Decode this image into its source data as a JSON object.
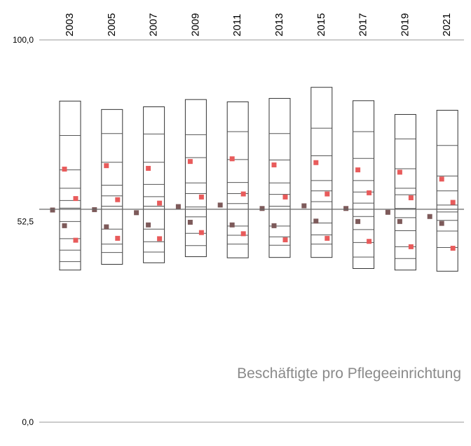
{
  "chart_data": {
    "type": "scatter",
    "title": "Beschäftigte pro Pflegeeinrichtung",
    "y_tick_labels": [
      "100,0",
      "52,5",
      "0,0"
    ],
    "ylim": [
      0,
      100
    ],
    "reference_line": 55.7,
    "grid": false,
    "colors": {
      "box": "#333333",
      "dark_marker": "#7d5a5a",
      "red_marker": "#e85b5b",
      "title": "#8a8a8a"
    },
    "categories": [
      "2003",
      "2005",
      "2007",
      "2009",
      "2011",
      "2013",
      "2015",
      "2017",
      "2019",
      "2021"
    ],
    "columns": [
      {
        "year": "2003",
        "box_range": [
          39.8,
          84.0
        ],
        "ticks": [
          75.0,
          66.0,
          61.2,
          58.0,
          56.0,
          52.5,
          48.0,
          45.0,
          42.0
        ],
        "markers": [
          {
            "y": 55.5,
            "kind": "dark",
            "pos": 0
          },
          {
            "y": 66.2,
            "kind": "red",
            "pos": 1
          },
          {
            "y": 58.5,
            "kind": "red",
            "pos": 2
          },
          {
            "y": 51.4,
            "kind": "dark",
            "pos": 1
          },
          {
            "y": 47.6,
            "kind": "red",
            "pos": 2
          }
        ]
      },
      {
        "year": "2005",
        "box_range": [
          41.3,
          81.8
        ],
        "ticks": [
          75.5,
          68.0,
          62.0,
          59.2,
          56.5,
          50.5,
          46.6,
          44.4
        ],
        "markers": [
          {
            "y": 55.6,
            "kind": "dark",
            "pos": 0
          },
          {
            "y": 67.1,
            "kind": "red",
            "pos": 1
          },
          {
            "y": 58.2,
            "kind": "red",
            "pos": 2
          },
          {
            "y": 51.1,
            "kind": "dark",
            "pos": 1
          },
          {
            "y": 48.1,
            "kind": "red",
            "pos": 2
          }
        ]
      },
      {
        "year": "2007",
        "box_range": [
          41.7,
          82.5
        ],
        "ticks": [
          75.4,
          68.0,
          62.2,
          59.0,
          56.5,
          50.5,
          47.2,
          44.5
        ],
        "markers": [
          {
            "y": 54.8,
            "kind": "dark",
            "pos": 0
          },
          {
            "y": 66.4,
            "kind": "red",
            "pos": 1
          },
          {
            "y": 57.3,
            "kind": "red",
            "pos": 2
          },
          {
            "y": 51.6,
            "kind": "dark",
            "pos": 1
          },
          {
            "y": 48.0,
            "kind": "red",
            "pos": 2
          }
        ]
      },
      {
        "year": "2009",
        "box_range": [
          43.3,
          84.4
        ],
        "ticks": [
          75.2,
          69.2,
          62.6,
          59.8,
          56.3,
          53.7,
          49.4,
          46.2
        ],
        "markers": [
          {
            "y": 56.4,
            "kind": "dark",
            "pos": 0
          },
          {
            "y": 68.2,
            "kind": "red",
            "pos": 1
          },
          {
            "y": 58.9,
            "kind": "red",
            "pos": 2
          },
          {
            "y": 52.3,
            "kind": "dark",
            "pos": 1
          },
          {
            "y": 49.6,
            "kind": "red",
            "pos": 2
          }
        ]
      },
      {
        "year": "2011",
        "box_range": [
          43.0,
          83.8
        ],
        "ticks": [
          76.0,
          68.7,
          62.7,
          59.8,
          57.2,
          51.3,
          48.9,
          46.6
        ],
        "markers": [
          {
            "y": 56.8,
            "kind": "dark",
            "pos": 0
          },
          {
            "y": 68.9,
            "kind": "red",
            "pos": 1
          },
          {
            "y": 59.7,
            "kind": "red",
            "pos": 2
          },
          {
            "y": 51.6,
            "kind": "dark",
            "pos": 1
          },
          {
            "y": 49.3,
            "kind": "red",
            "pos": 2
          }
        ]
      },
      {
        "year": "2013",
        "box_range": [
          43.1,
          84.7
        ],
        "ticks": [
          75.5,
          68.6,
          62.6,
          59.6,
          56.5,
          51.3,
          48.5,
          46.3
        ],
        "markers": [
          {
            "y": 55.9,
            "kind": "dark",
            "pos": 0
          },
          {
            "y": 67.3,
            "kind": "red",
            "pos": 1
          },
          {
            "y": 58.9,
            "kind": "red",
            "pos": 2
          },
          {
            "y": 51.4,
            "kind": "dark",
            "pos": 1
          },
          {
            "y": 47.7,
            "kind": "red",
            "pos": 2
          }
        ]
      },
      {
        "year": "2015",
        "box_range": [
          43.1,
          87.6
        ],
        "ticks": [
          76.9,
          69.7,
          63.2,
          60.5,
          57.7,
          52.1,
          49.0,
          46.6
        ],
        "markers": [
          {
            "y": 56.6,
            "kind": "dark",
            "pos": 0
          },
          {
            "y": 67.9,
            "kind": "red",
            "pos": 1
          },
          {
            "y": 59.7,
            "kind": "red",
            "pos": 2
          },
          {
            "y": 52.6,
            "kind": "dark",
            "pos": 1
          },
          {
            "y": 48.1,
            "kind": "red",
            "pos": 2
          }
        ]
      },
      {
        "year": "2017",
        "box_range": [
          40.2,
          84.1
        ],
        "ticks": [
          76.0,
          69.0,
          63.2,
          60.2,
          57.3,
          53.8,
          50.4,
          47.0,
          43.2
        ],
        "markers": [
          {
            "y": 55.9,
            "kind": "dark",
            "pos": 0
          },
          {
            "y": 66.0,
            "kind": "red",
            "pos": 1
          },
          {
            "y": 60.0,
            "kind": "red",
            "pos": 2
          },
          {
            "y": 52.5,
            "kind": "dark",
            "pos": 1
          },
          {
            "y": 47.3,
            "kind": "red",
            "pos": 2
          }
        ]
      },
      {
        "year": "2019",
        "box_range": [
          39.8,
          80.5
        ],
        "ticks": [
          74.1,
          66.3,
          61.2,
          59.5,
          55.9,
          53.5,
          50.1,
          45.9,
          42.8
        ],
        "markers": [
          {
            "y": 54.9,
            "kind": "dark",
            "pos": 0
          },
          {
            "y": 65.4,
            "kind": "red",
            "pos": 1
          },
          {
            "y": 58.7,
            "kind": "red",
            "pos": 2
          },
          {
            "y": 52.5,
            "kind": "dark",
            "pos": 1
          },
          {
            "y": 45.9,
            "kind": "red",
            "pos": 2
          }
        ]
      },
      {
        "year": "2021",
        "box_range": [
          39.5,
          81.6
        ],
        "ticks": [
          72.4,
          64.4,
          60.5,
          56.8,
          55.0,
          52.8,
          50.0,
          45.7
        ],
        "markers": [
          {
            "y": 53.8,
            "kind": "dark",
            "pos": 0
          },
          {
            "y": 63.6,
            "kind": "red",
            "pos": 1
          },
          {
            "y": 57.5,
            "kind": "red",
            "pos": 2
          },
          {
            "y": 52.0,
            "kind": "dark",
            "pos": 1
          },
          {
            "y": 45.5,
            "kind": "red",
            "pos": 2
          }
        ]
      }
    ]
  }
}
